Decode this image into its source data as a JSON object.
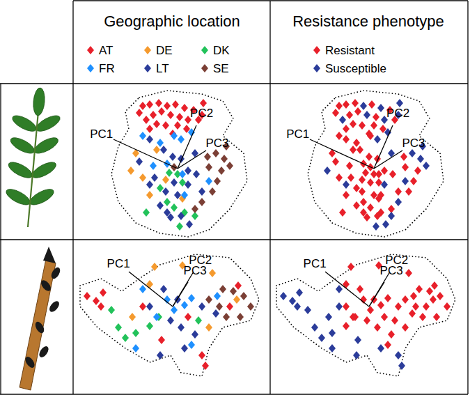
{
  "chart_data": [
    {
      "type": "scatter",
      "title": "Geographic location",
      "marker": "diamond",
      "legend": "top",
      "tick_labels": false,
      "xlim": [
        0,
        280
      ],
      "ylim": [
        0,
        220
      ],
      "series": [
        {
          "name": "AT",
          "color": "#e8202a",
          "x": [
            98,
            108,
            121,
            133,
            145,
            158,
            171,
            183,
            178,
            125,
            138,
            151,
            163,
            113,
            103,
            118,
            131,
            148,
            93,
            161,
            141,
            108,
            185
          ],
          "y": [
            190,
            192,
            194,
            190,
            192,
            187,
            184,
            177,
            170,
            182,
            177,
            174,
            170,
            177,
            170,
            164,
            162,
            162,
            180,
            157,
            150,
            157,
            194
          ]
        },
        {
          "name": "DE",
          "color": "#f59a2e",
          "x": [
            88,
            81,
            98,
            108,
            131,
            118,
            155
          ],
          "y": [
            122,
            97,
            87,
            62,
            84,
            127,
            57
          ]
        },
        {
          "name": "DK",
          "color": "#22c25a",
          "x": [
            148,
            155,
            123,
            133,
            143,
            158,
            151,
            103,
            173,
            136
          ],
          "y": [
            92,
            80,
            72,
            52,
            44,
            37,
            17,
            37,
            32,
            94
          ]
        },
        {
          "name": "FR",
          "color": "#1e90ff",
          "x": [
            98,
            123,
            153,
            168,
            133,
            155,
            158,
            113,
            193,
            143
          ],
          "y": [
            147,
            137,
            142,
            152,
            107,
            92,
            62,
            104,
            82,
            147
          ]
        },
        {
          "name": "LT",
          "color": "#2b3c9a",
          "x": [
            108,
            128,
            141,
            153,
            163,
            173,
            143,
            131,
            148,
            163,
            115,
            123,
            138,
            165,
            153,
            108,
            93,
            175,
            183,
            133
          ],
          "y": [
            142,
            127,
            117,
            114,
            97,
            122,
            80,
            67,
            62,
            77,
            87,
            47,
            30,
            20,
            32,
            77,
            110,
            92,
            67,
            37
          ]
        },
        {
          "name": "SE",
          "color": "#7b3f35",
          "x": [
            203,
            215,
            211,
            223,
            193,
            183,
            198,
            205,
            173,
            143,
            218,
            191
          ],
          "y": [
            122,
            114,
            97,
            104,
            102,
            52,
            67,
            82,
            42,
            102,
            132,
            117
          ]
        }
      ],
      "origin": {
        "x": 148,
        "y": 100
      },
      "loadings": [
        {
          "label": "PC1",
          "x": 56,
          "y": 142
        },
        {
          "label": "PC2",
          "x": 175,
          "y": 162
        },
        {
          "label": "PC3",
          "x": 189,
          "y": 126
        }
      ],
      "outline": {
        "x": [
          93,
          133,
          183,
          213,
          228,
          213,
          243,
          248,
          223,
          193,
          163,
          123,
          88,
          63,
          53,
          63,
          78,
          73
        ],
        "y": [
          202,
          212,
          207,
          197,
          172,
          147,
          122,
          82,
          42,
          12,
          2,
          7,
          22,
          52,
          92,
          132,
          157,
          182
        ]
      }
    },
    {
      "type": "scatter",
      "title": "Resistance phenotype",
      "marker": "diamond",
      "legend": "top",
      "tick_labels": false,
      "xlim": [
        0,
        280
      ],
      "ylim": [
        0,
        220
      ],
      "series": [
        {
          "name": "Resistant",
          "color": "#e8202a",
          "x": [
            98,
            108,
            121,
            145,
            171,
            178,
            125,
            151,
            113,
            118,
            131,
            148,
            93,
            161,
            141,
            108,
            98,
            123,
            133,
            155,
            158,
            113,
            143,
            88,
            98,
            108,
            131,
            118,
            155,
            148,
            155,
            123,
            133,
            143,
            158,
            103,
            136,
            108,
            128,
            141,
            153,
            163,
            143,
            131,
            148,
            115,
            123,
            138,
            153,
            93,
            175,
            183,
            133,
            211,
            193,
            198,
            205,
            173,
            143,
            191
          ],
          "y": [
            190,
            192,
            194,
            192,
            184,
            170,
            182,
            174,
            177,
            164,
            162,
            162,
            180,
            157,
            150,
            157,
            147,
            137,
            107,
            92,
            62,
            104,
            147,
            122,
            87,
            62,
            84,
            127,
            57,
            92,
            80,
            72,
            52,
            44,
            37,
            37,
            94,
            142,
            127,
            117,
            114,
            97,
            80,
            67,
            62,
            87,
            47,
            30,
            32,
            110,
            92,
            67,
            37,
            97,
            102,
            67,
            82,
            42,
            102,
            117
          ]
        },
        {
          "name": "Susceptible",
          "color": "#2b3c9a",
          "x": [
            133,
            158,
            183,
            138,
            163,
            103,
            185,
            153,
            168,
            193,
            81,
            151,
            173,
            173,
            163,
            165,
            108,
            203,
            215,
            223,
            183,
            218
          ],
          "y": [
            190,
            187,
            177,
            177,
            170,
            170,
            194,
            142,
            152,
            82,
            97,
            17,
            32,
            122,
            77,
            20,
            77,
            122,
            114,
            104,
            52,
            132
          ]
        }
      ],
      "origin": {
        "x": 148,
        "y": 100
      },
      "loadings": [
        {
          "label": "PC1",
          "x": 56,
          "y": 142
        },
        {
          "label": "PC2",
          "x": 175,
          "y": 162
        },
        {
          "label": "PC3",
          "x": 189,
          "y": 126
        }
      ],
      "outline": {
        "x": [
          93,
          133,
          183,
          213,
          228,
          213,
          243,
          248,
          223,
          193,
          163,
          123,
          88,
          63,
          53,
          63,
          78,
          73
        ],
        "y": [
          202,
          212,
          207,
          197,
          172,
          147,
          122,
          82,
          42,
          12,
          2,
          7,
          22,
          52,
          92,
          132,
          157,
          182
        ]
      }
    },
    {
      "type": "scatter",
      "marker": "diamond",
      "tick_labels": false,
      "xlim": [
        0,
        280
      ],
      "ylim": [
        0,
        220
      ],
      "series": [
        {
          "name": "AT",
          "color": "#e8202a",
          "x": [
            18,
            31,
            41,
            38,
            98,
            183,
            188,
            125,
            235,
            223,
            163
          ],
          "y": [
            140,
            133,
            145,
            125,
            125,
            55,
            40,
            77,
            155,
            125,
            110
          ]
        },
        {
          "name": "DE",
          "color": "#f59a2e",
          "x": [
            115,
            155,
            198,
            83,
            108,
            233,
            193
          ],
          "y": [
            182,
            184,
            173,
            110,
            157,
            135,
            95
          ]
        },
        {
          "name": "DK",
          "color": "#22c25a",
          "x": [
            63,
            73,
            88,
            108,
            121,
            178,
            53
          ],
          "y": [
            95,
            80,
            87,
            97,
            110,
            105,
            120
          ]
        },
        {
          "name": "FR",
          "color": "#1e90ff",
          "x": [
            98,
            133,
            143,
            158,
            168,
            205,
            88,
            168,
            118
          ],
          "y": [
            150,
            135,
            120,
            127,
            137,
            140,
            65,
            70,
            110
          ]
        },
        {
          "name": "LT",
          "color": "#2b3c9a",
          "x": [
            128,
            148,
            138,
            153,
            183,
            173,
            123,
            108,
            158,
            203
          ],
          "y": [
            150,
            135,
            105,
            95,
            125,
            85,
            55,
            125,
            65,
            115
          ]
        },
        {
          "name": "SE",
          "color": "#7b3f35",
          "x": [
            213,
            228,
            243,
            253,
            208,
            218,
            193,
            238
          ],
          "y": [
            150,
            147,
            140,
            125,
            125,
            110,
            135,
            110
          ]
        }
      ],
      "origin": {
        "x": 141,
        "y": 125
      },
      "loadings": [
        {
          "label": "PC1",
          "x": 78,
          "y": 175
        },
        {
          "label": "PC2",
          "x": 171,
          "y": 175
        },
        {
          "label": "PC3",
          "x": 163,
          "y": 160
        }
      ],
      "outline": {
        "x": [
          8,
          38,
          68,
          93,
          123,
          173,
          223,
          253,
          265,
          253,
          213,
          193,
          183,
          153,
          138,
          108,
          73,
          33,
          8
        ],
        "y": [
          155,
          165,
          147,
          165,
          185,
          200,
          195,
          165,
          135,
          105,
          95,
          65,
          25,
          30,
          55,
          45,
          65,
          95,
          125
        ]
      }
    },
    {
      "type": "scatter",
      "marker": "diamond",
      "tick_labels": false,
      "xlim": [
        0,
        280
      ],
      "ylim": [
        0,
        220
      ],
      "series": [
        {
          "name": "Resistant",
          "color": "#e8202a",
          "x": [
            235,
            223,
            163,
            115,
            155,
            198,
            108,
            233,
            193,
            108,
            121,
            178,
            133,
            143,
            158,
            168,
            205,
            168,
            118,
            128,
            148,
            138,
            153,
            183,
            173,
            108,
            203,
            213,
            228,
            243,
            253,
            208,
            218,
            193,
            238
          ],
          "y": [
            155,
            125,
            110,
            182,
            184,
            173,
            157,
            135,
            95,
            97,
            110,
            105,
            135,
            120,
            127,
            137,
            140,
            70,
            110,
            150,
            135,
            105,
            95,
            125,
            85,
            125,
            115,
            150,
            147,
            140,
            125,
            125,
            110,
            135,
            110
          ]
        },
        {
          "name": "Susceptible",
          "color": "#2b3c9a",
          "x": [
            18,
            31,
            41,
            38,
            98,
            125,
            183,
            188,
            83,
            63,
            73,
            88,
            53,
            98,
            88,
            123,
            158
          ],
          "y": [
            140,
            133,
            145,
            125,
            125,
            77,
            55,
            40,
            110,
            95,
            80,
            87,
            120,
            150,
            65,
            55,
            65
          ]
        }
      ],
      "origin": {
        "x": 141,
        "y": 125
      },
      "loadings": [
        {
          "label": "PC1",
          "x": 78,
          "y": 175
        },
        {
          "label": "PC2",
          "x": 171,
          "y": 175
        },
        {
          "label": "PC3",
          "x": 163,
          "y": 160
        }
      ],
      "outline": {
        "x": [
          8,
          38,
          68,
          93,
          123,
          173,
          223,
          253,
          265,
          253,
          213,
          193,
          183,
          153,
          138,
          108,
          73,
          33,
          8
        ],
        "y": [
          155,
          165,
          147,
          165,
          185,
          200,
          195,
          165,
          135,
          105,
          95,
          65,
          25,
          30,
          55,
          45,
          65,
          95,
          125
        ]
      }
    }
  ]
}
